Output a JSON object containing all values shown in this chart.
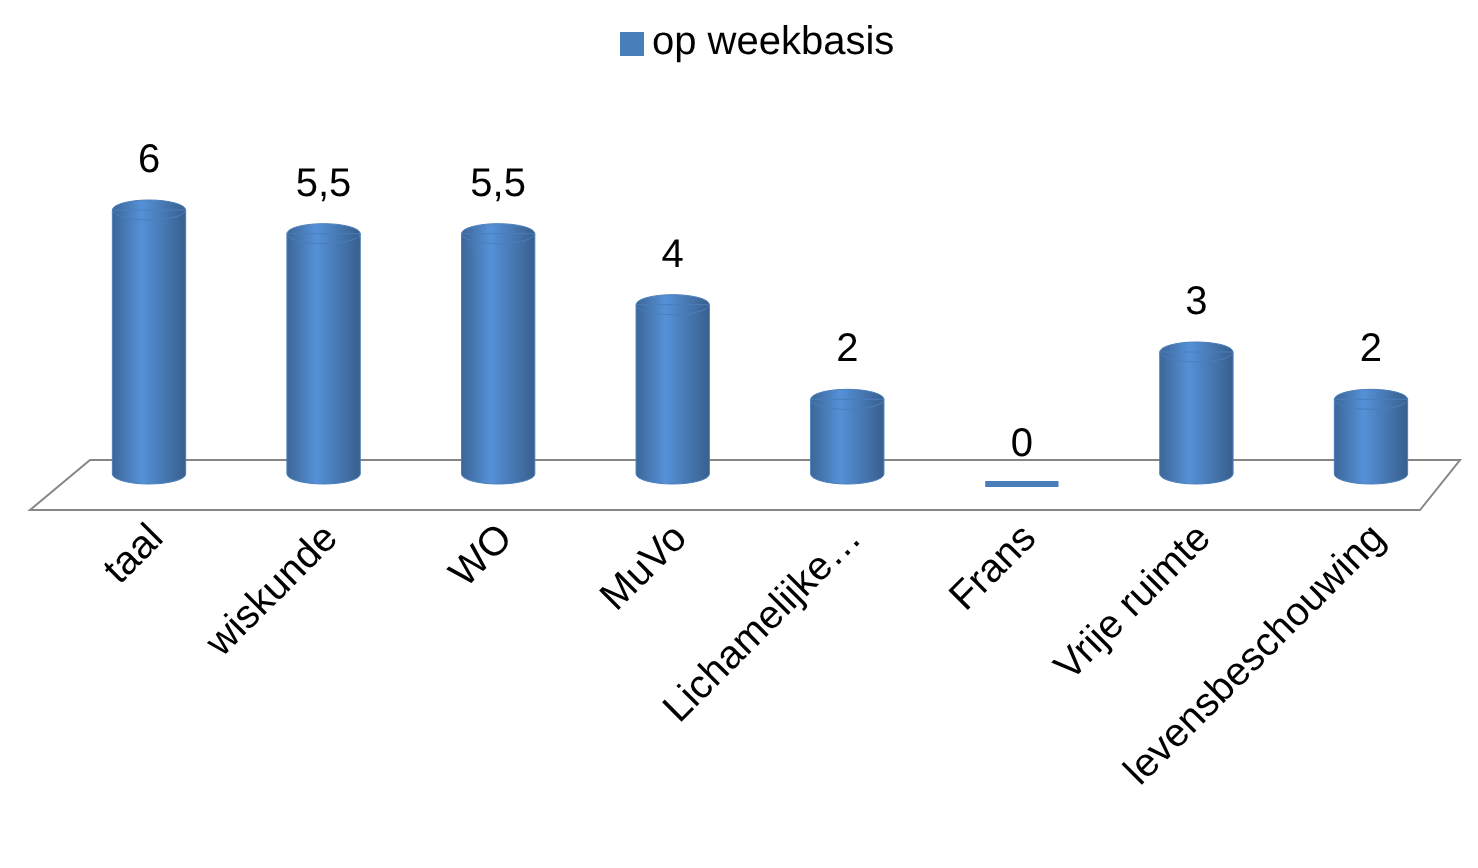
{
  "chart_data": {
    "type": "bar",
    "categories": [
      "taal",
      "wiskunde",
      "WO",
      "MuVo",
      "Lichamelijke…",
      "Frans",
      "Vrije ruimte",
      "levensbeschouwing"
    ],
    "series": [
      {
        "name": "op weekbasis",
        "color": "#4a7ebb",
        "values": [
          6,
          5.5,
          5.5,
          4,
          2,
          0,
          3,
          2
        ],
        "value_labels": [
          "6",
          "5,5",
          "5,5",
          "4",
          "2",
          "0",
          "3",
          "2"
        ]
      }
    ],
    "legend": "top"
  }
}
